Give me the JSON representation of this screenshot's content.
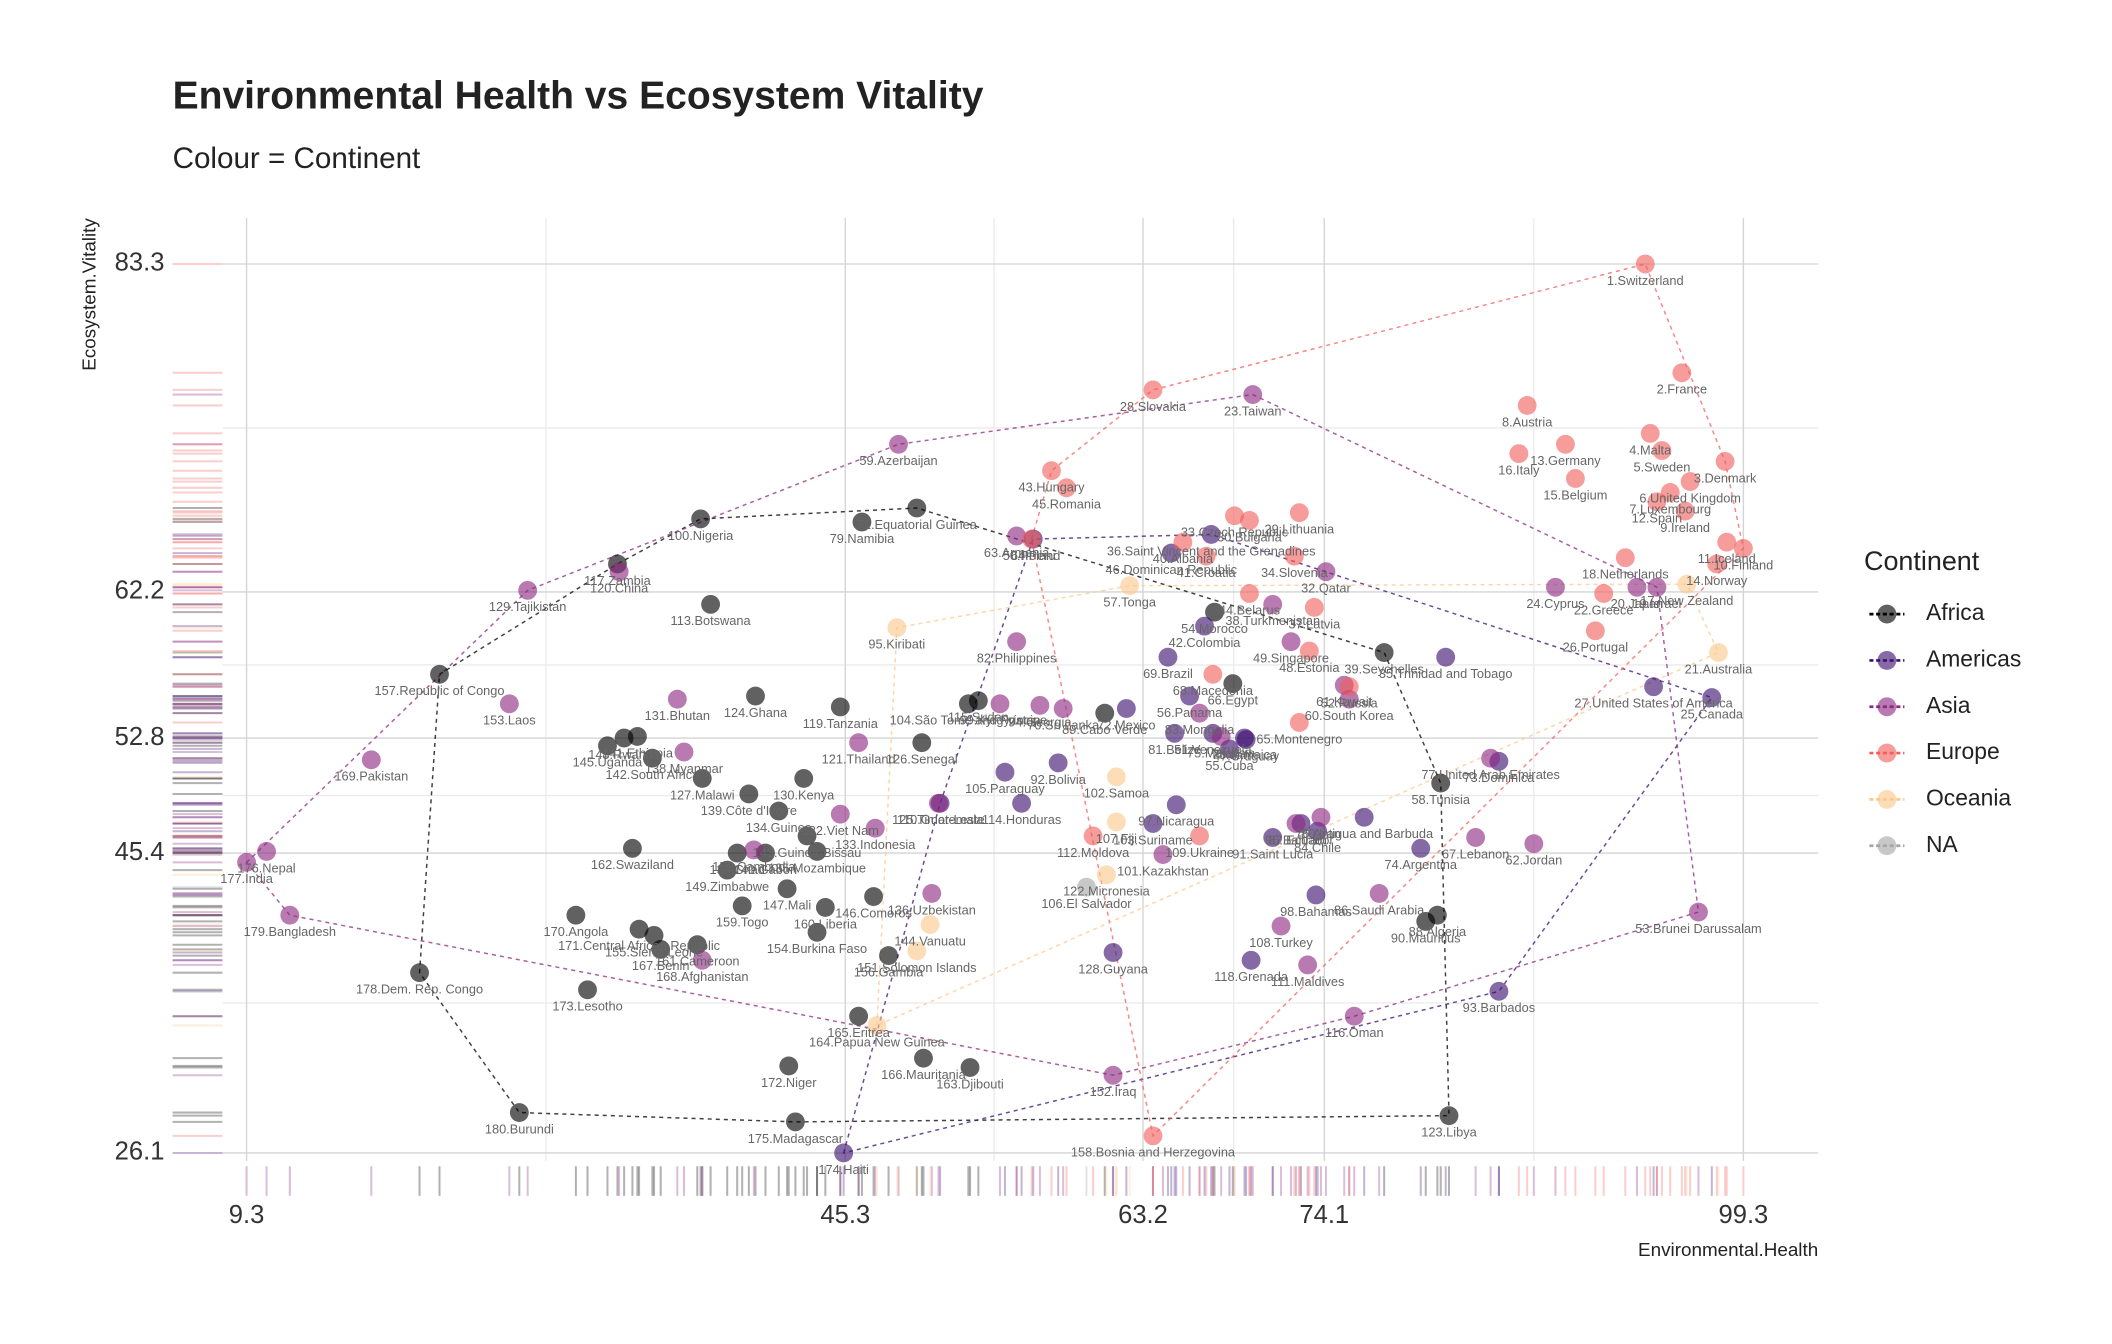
{
  "chart_data": {
    "type": "scatter",
    "title": "Environmental Health vs Ecosystem Vitality",
    "subtitle": "Colour = Continent",
    "x_label": "Environmental.Health",
    "y_label": "Ecosystem.Vitality",
    "legend_title": "Continent",
    "legend_position": "right",
    "grid": true,
    "xlim": [
      4.85,
      103.8
    ],
    "ylim": [
      24.9,
      86.25
    ],
    "xticks": [
      9.3,
      45.3,
      63.2,
      74.1,
      99.3
    ],
    "yticks": [
      26.1,
      45.4,
      52.8,
      62.2,
      83.3
    ],
    "series": [
      {
        "name": "Africa",
        "color": "#000000",
        "labels": [
          "39.Seychelles",
          "54.Morocco",
          "58.Tunisia",
          "66.Egypt",
          "71.Equatorial Guinea",
          "79.Namibia",
          "88.Algeria",
          "89.Cabo Verde",
          "90.Mauritius",
          "100.Nigeria",
          "104.São Tomé and Príncipe",
          "113.Botswana",
          "115.Sudan",
          "117.Zambia",
          "119.Tanzania",
          "123.Libya",
          "124.Ghana",
          "126.Senegal",
          "127.Malawi",
          "130.Kenya",
          "134.Guinea",
          "135.Mozambique",
          "137.Chad",
          "139.Côte d'Ivoire",
          "140.Gabon",
          "141.Ethiopia",
          "142.South Africa",
          "143.Guinea-Bissau",
          "145.Uganda",
          "146.Comoros",
          "147.Mali",
          "148.Rwanda",
          "149.Zimbabwe",
          "154.Burkina Faso",
          "155.Sierra Leone",
          "156.Gambia",
          "157.Republic of Congo",
          "159.Togo",
          "160.Liberia",
          "161.Cameroon",
          "162.Swaziland",
          "163.Djibouti",
          "165.Eritrea",
          "166.Mauritania",
          "167.Benin",
          "170.Angola",
          "171.Central African Republic",
          "172.Niger",
          "173.Lesotho",
          "175.Madagascar",
          "178.Dem. Rep. Congo",
          "180.Burundi"
        ],
        "x": [
          77.7,
          67.5,
          81.1,
          68.6,
          49.6,
          46.3,
          80.9,
          60.9,
          80.2,
          36.6,
          52.7,
          37.2,
          53.3,
          31.6,
          45.0,
          81.6,
          39.9,
          49.9,
          36.7,
          42.8,
          41.3,
          43.6,
          38.8,
          39.5,
          40.5,
          32.8,
          33.7,
          43.0,
          31.0,
          47.0,
          41.8,
          32.0,
          38.2,
          43.6,
          33.8,
          47.9,
          20.9,
          39.1,
          44.1,
          36.4,
          32.5,
          52.8,
          46.1,
          50.0,
          34.2,
          29.1,
          32.9,
          41.9,
          29.8,
          42.3,
          19.7,
          25.7
        ],
        "values": [
          58.3,
          60.9,
          49.9,
          56.3,
          67.6,
          66.7,
          41.4,
          54.4,
          41.0,
          66.9,
          55.0,
          61.4,
          55.2,
          64.0,
          54.8,
          28.5,
          55.5,
          52.5,
          50.2,
          50.2,
          48.1,
          45.5,
          45.4,
          49.2,
          45.4,
          52.9,
          51.5,
          46.5,
          52.3,
          42.6,
          43.1,
          52.8,
          44.3,
          40.3,
          40.1,
          38.8,
          56.9,
          42.0,
          41.9,
          39.5,
          45.7,
          31.6,
          34.9,
          32.2,
          39.2,
          41.4,
          40.5,
          31.7,
          36.6,
          28.1,
          37.7,
          28.7
        ]
      },
      {
        "name": "Americas",
        "color": "#3b0f70",
        "labels": [
          "25.Canada",
          "27.United States of America",
          "35.Trinidad and Tobago",
          "36.Saint Vincent and the Grenadines",
          "42.Colombia",
          "46.Dominican Republic",
          "47.Uruguay",
          "51.Venezuela",
          "55.Cuba",
          "56.Panama",
          "64.Peru",
          "69.Brazil",
          "72.Mexico",
          "73.Dominica",
          "74.Argentina",
          "76.Antigua and Barbuda",
          "78.Jamaica",
          "81.Belize",
          "84.Chile",
          "87.Ecuador",
          "91.Saint Lucia",
          "92.Bolivia",
          "93.Barbados",
          "97.Nicaragua",
          "98.Bahamas",
          "103.Suriname",
          "105.Paraguay",
          "110.Guatemala",
          "114.Honduras",
          "118.Grenada",
          "128.Guyana",
          "174.Haiti"
        ],
        "x": [
          97.4,
          93.9,
          81.4,
          67.3,
          66.9,
          64.9,
          69.4,
          67.4,
          68.4,
          66.0,
          56.6,
          64.7,
          62.2,
          84.6,
          79.9,
          76.5,
          69.3,
          65.1,
          73.7,
          72.7,
          71.0,
          58.1,
          84.6,
          65.2,
          73.6,
          63.8,
          54.9,
          51.0,
          55.9,
          69.7,
          61.4,
          45.2
        ],
        "values": [
          55.4,
          56.1,
          58.0,
          65.9,
          60.0,
          64.7,
          52.7,
          53.1,
          52.1,
          55.5,
          65.6,
          58.0,
          54.7,
          51.3,
          45.7,
          47.7,
          52.8,
          53.1,
          46.8,
          47.3,
          46.4,
          51.2,
          36.5,
          48.5,
          42.7,
          47.3,
          50.6,
          48.6,
          48.6,
          38.5,
          39.0,
          26.1
        ]
      },
      {
        "name": "Asia",
        "color": "#8c2981",
        "labels": [
          "19.Israel",
          "20.Japan",
          "23.Taiwan",
          "24.Cyprus",
          "32.Qatar",
          "38.Turkmenistan",
          "49.Singapore",
          "53.Brunei Darussalam",
          "59.Azerbaijan",
          "60.South Korea",
          "61.Kuwait",
          "62.Jordan",
          "63.Armenia",
          "67.Lebanon",
          "70.Sri Lanka",
          "75.Malaysia",
          "77.United Arab Emirates",
          "80.Iran",
          "82.Philippines",
          "83.Mongolia",
          "86.Saudi Arabia",
          "94.Georgia",
          "96.Bahrain",
          "99.Kyrgyzstan",
          "101.Kazakhstan",
          "108.Turkey",
          "111.Maldives",
          "116.Oman",
          "120.China",
          "121.Thailand",
          "125.Timor-Leste",
          "129.Tajikistan",
          "131.Bhutan",
          "132.Viet Nam",
          "133.Indonesia",
          "136.Uzbekistan",
          "138.Myanmar",
          "150.Cambodia",
          "152.Iraq",
          "153.Laos",
          "168.Afghanistan",
          "169.Pakistan",
          "176.Nepal",
          "177.India",
          "179.Bangladesh"
        ],
        "x": [
          94.1,
          92.9,
          69.8,
          88.0,
          74.2,
          71.0,
          72.1,
          96.6,
          48.5,
          75.6,
          75.3,
          86.7,
          55.6,
          83.2,
          58.4,
          67.9,
          84.1,
          73.9,
          55.6,
          66.6,
          77.4,
          57.0,
          72.4,
          54.6,
          64.4,
          71.5,
          73.1,
          75.9,
          31.7,
          46.1,
          50.9,
          26.2,
          35.2,
          45.0,
          47.1,
          50.5,
          35.6,
          39.8,
          61.4,
          25.1,
          36.7,
          16.8,
          10.5,
          9.3,
          11.9
        ],
        "values": [
          62.5,
          62.5,
          74.9,
          62.5,
          63.5,
          61.4,
          59.0,
          41.6,
          71.7,
          55.3,
          56.2,
          46.0,
          65.8,
          46.4,
          54.7,
          52.9,
          51.5,
          47.7,
          59.0,
          54.4,
          42.8,
          54.9,
          47.3,
          55.0,
          45.3,
          40.7,
          38.2,
          34.9,
          63.5,
          52.5,
          48.6,
          62.3,
          55.3,
          47.9,
          47.0,
          42.8,
          51.9,
          45.6,
          31.1,
          55.0,
          38.5,
          51.4,
          45.5,
          44.8,
          41.4
        ]
      },
      {
        "name": "Europe",
        "color": "#f1605d",
        "labels": [
          "1.Switzerland",
          "2.France",
          "3.Denmark",
          "4.Malta",
          "5.Sweden",
          "6.United Kingdom",
          "7.Luxembourg",
          "8.Austria",
          "9.Ireland",
          "10.Finland",
          "11.Iceland",
          "12.Spain",
          "13.Germany",
          "14.Norway",
          "15.Belgium",
          "16.Italy",
          "18.Netherlands",
          "22.Greece",
          "26.Portugal",
          "28.Slovakia",
          "29.Lithuania",
          "30.Bulgaria",
          "33.Czech Republic",
          "34.Slovenia",
          "37.Latvia",
          "40.Albania",
          "41.Croatia",
          "43.Hungary",
          "44.Belarus",
          "45.Romania",
          "48.Estonia",
          "50.Poland",
          "52.Russia",
          "65.Montenegro",
          "68.Macedonia",
          "109.Ukraine",
          "112.Moldova",
          "158.Bosnia and Herzegovina"
        ],
        "x": [
          93.4,
          95.6,
          98.2,
          93.7,
          94.4,
          96.1,
          94.9,
          86.3,
          95.8,
          99.3,
          98.3,
          94.1,
          88.6,
          97.7,
          89.2,
          85.8,
          92.2,
          90.9,
          90.4,
          63.8,
          72.6,
          69.6,
          68.7,
          72.3,
          73.5,
          65.6,
          67.0,
          57.7,
          69.6,
          58.6,
          73.2,
          56.5,
          75.6,
          72.6,
          67.4,
          66.6,
          60.2,
          63.8
        ],
        "values": [
          83.3,
          76.3,
          70.6,
          72.4,
          71.3,
          69.3,
          68.6,
          74.2,
          67.4,
          65.0,
          65.4,
          68.0,
          71.7,
          64.0,
          69.5,
          71.1,
          64.4,
          62.1,
          59.7,
          75.2,
          67.3,
          66.8,
          67.1,
          64.5,
          61.2,
          65.4,
          64.5,
          70.0,
          62.1,
          68.9,
          58.4,
          65.6,
          56.1,
          53.8,
          56.9,
          46.5,
          46.5,
          27.2
        ]
      },
      {
        "name": "Oceania",
        "color": "#fcc88d",
        "labels": [
          "17.New Zealand",
          "21.Australia",
          "57.Tonga",
          "95.Kiribati",
          "102.Samoa",
          "107.Fiji",
          "122.Micronesia",
          "144.Vanuatu",
          "151.Solomon Islands",
          "164.Papua New Guinea"
        ],
        "x": [
          95.9,
          97.8,
          62.4,
          48.4,
          61.6,
          61.6,
          61.0,
          50.4,
          49.6,
          47.2
        ],
        "values": [
          62.7,
          58.3,
          62.6,
          59.9,
          50.3,
          47.4,
          44.0,
          40.8,
          39.1,
          34.3
        ]
      },
      {
        "name": "NA",
        "color": "#a6a6a6",
        "labels": [
          "106.El Salvador"
        ],
        "x": [
          59.8
        ],
        "values": [
          43.2
        ]
      }
    ]
  }
}
